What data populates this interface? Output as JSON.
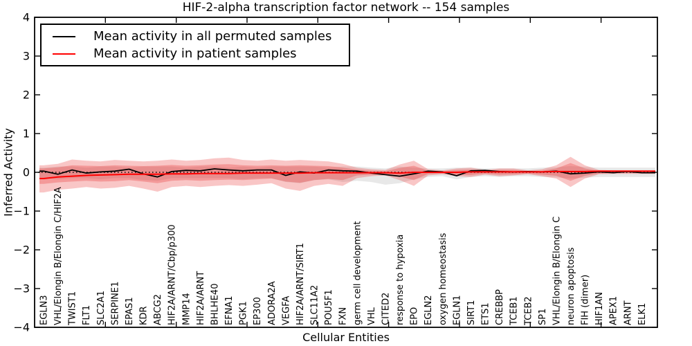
{
  "colors": {
    "black_line": "#000000",
    "red_line": "#ff0000",
    "grey_band": "rgba(128,128,128,0.18)",
    "red_band_outer": "rgba(232,50,50,0.28)",
    "red_band_inner": "rgba(232,50,50,0.30)",
    "zero_line": "#000000",
    "axis": "#000000"
  },
  "legend": {
    "items": [
      {
        "label": "Mean activity in all permuted samples",
        "color": "#000000"
      },
      {
        "label": "Mean activity in patient samples",
        "color": "#ff0000"
      }
    ]
  },
  "chart_data": {
    "type": "line",
    "title": "HIF-2-alpha transcription factor network -- 154 samples",
    "xlabel": "Cellular Entities",
    "ylabel": "Inferred Activity",
    "ylim": [
      -4,
      4
    ],
    "ytick_values": [
      4,
      3,
      2,
      1,
      0,
      -1,
      -2,
      -3,
      -4
    ],
    "ytick_labels": [
      "4",
      "3",
      "2",
      "1",
      "0",
      "−1",
      "−2",
      "−3",
      "−4"
    ],
    "grid": false,
    "zero_line_dotted": true,
    "legend_position": "upper left",
    "categories": [
      "EGLN3",
      "VHL/Elongin B/Elongin C/HIF2A",
      "TWIST1",
      "FLT1",
      "SLC2A1",
      "SERPINE1",
      "EPAS1",
      "KDR",
      "ABCG2",
      "HIF2A/ARNT/Cbp/p300",
      "MMP14",
      "HIF2A/ARNT",
      "BHLHE40",
      "EFNA1",
      "PGK1",
      "EP300",
      "ADORA2A",
      "VEGFA",
      "HIF2A/ARNT/SIRT1",
      "SLC11A2",
      "POU5F1",
      "FXN",
      "germ cell development",
      "VHL",
      "CITED2",
      "response to hypoxia",
      "EPO",
      "EGLN2",
      "oxygen homeostasis",
      "EGLN1",
      "SIRT1",
      "ETS1",
      "CREBBP",
      "TCEB1",
      "TCEB2",
      "SP1",
      "VHL/Elongin B/Elongin C",
      "neuron apoptosis",
      "FIH (dimer)",
      "HIF1AN",
      "APEX1",
      "ARNT",
      "ELK1"
    ],
    "series": [
      {
        "name": "Mean activity in all permuted samples",
        "color": "#000000",
        "values": [
          0.03,
          -0.05,
          0.06,
          -0.02,
          0.01,
          0.03,
          0.08,
          -0.04,
          -0.12,
          0.02,
          0.05,
          0.04,
          0.09,
          0.06,
          0.04,
          0.06,
          0.06,
          -0.08,
          0.01,
          -0.02,
          0.06,
          0.04,
          0.03,
          -0.02,
          -0.06,
          -0.1,
          -0.04,
          0.03,
          0.01,
          -0.09,
          0.04,
          0.05,
          0.02,
          0.01,
          0.02,
          0.01,
          0.03,
          -0.04,
          -0.02,
          0.01,
          -0.01,
          0.02,
          -0.01
        ]
      },
      {
        "name": "Mean activity in patient samples",
        "color": "#ff0000",
        "values": [
          -0.16,
          -0.12,
          -0.1,
          -0.08,
          -0.07,
          -0.06,
          -0.05,
          -0.05,
          -0.05,
          -0.04,
          -0.04,
          -0.03,
          -0.03,
          -0.03,
          -0.02,
          -0.02,
          -0.02,
          -0.02,
          -0.02,
          -0.01,
          -0.01,
          -0.01,
          -0.01,
          -0.01,
          -0.01,
          -0.02,
          0.0,
          0.0,
          0.0,
          0.0,
          0.01,
          0.01,
          0.01,
          0.01,
          0.01,
          0.01,
          0.02,
          0.02,
          0.02,
          0.03,
          0.03,
          0.03,
          0.03
        ]
      }
    ],
    "bands": [
      {
        "name": "permuted-samples-envelope",
        "color_key": "grey_band",
        "top": [
          0.12,
          0.15,
          0.15,
          0.12,
          0.15,
          0.15,
          0.12,
          0.15,
          0.15,
          0.15,
          0.12,
          0.15,
          0.15,
          0.12,
          0.15,
          0.12,
          0.15,
          0.15,
          0.15,
          0.15,
          0.12,
          0.15,
          0.15,
          0.12,
          0.1,
          0.15,
          0.12,
          0.1,
          0.1,
          0.12,
          0.12,
          0.1,
          0.1,
          0.1,
          0.1,
          0.12,
          0.13,
          0.16,
          0.14,
          0.12,
          0.12,
          0.12,
          0.12
        ],
        "bottom": [
          -0.15,
          -0.18,
          -0.15,
          -0.15,
          -0.18,
          -0.15,
          -0.15,
          -0.2,
          -0.22,
          -0.15,
          -0.15,
          -0.15,
          -0.15,
          -0.15,
          -0.18,
          -0.15,
          -0.15,
          -0.25,
          -0.28,
          -0.2,
          -0.18,
          -0.25,
          -0.22,
          -0.25,
          -0.32,
          -0.28,
          -0.18,
          -0.12,
          -0.1,
          -0.18,
          -0.12,
          -0.1,
          -0.12,
          -0.1,
          -0.1,
          -0.12,
          -0.13,
          -0.16,
          -0.14,
          -0.12,
          -0.12,
          -0.12,
          -0.12
        ]
      },
      {
        "name": "patient-samples-envelope-outer",
        "color_key": "red_band_outer",
        "top": [
          0.18,
          0.22,
          0.33,
          0.3,
          0.28,
          0.32,
          0.3,
          0.28,
          0.3,
          0.33,
          0.3,
          0.32,
          0.36,
          0.38,
          0.32,
          0.3,
          0.33,
          0.3,
          0.32,
          0.3,
          0.28,
          0.22,
          0.12,
          0.08,
          0.06,
          0.2,
          0.3,
          0.08,
          0.05,
          0.1,
          0.12,
          0.06,
          0.1,
          0.1,
          0.05,
          0.08,
          0.18,
          0.4,
          0.18,
          0.06,
          0.05,
          0.05,
          0.04
        ],
        "bottom": [
          -0.52,
          -0.45,
          -0.42,
          -0.38,
          -0.42,
          -0.4,
          -0.35,
          -0.42,
          -0.5,
          -0.38,
          -0.35,
          -0.38,
          -0.35,
          -0.33,
          -0.35,
          -0.32,
          -0.28,
          -0.42,
          -0.48,
          -0.35,
          -0.3,
          -0.35,
          -0.15,
          -0.1,
          -0.08,
          -0.2,
          -0.35,
          -0.08,
          -0.05,
          -0.1,
          -0.12,
          -0.06,
          -0.1,
          -0.08,
          -0.05,
          -0.1,
          -0.16,
          -0.38,
          -0.16,
          -0.05,
          -0.04,
          -0.04,
          -0.04
        ]
      },
      {
        "name": "patient-samples-envelope-inner",
        "color_key": "red_band_inner",
        "top": [
          0.1,
          0.13,
          0.18,
          0.17,
          0.16,
          0.18,
          0.17,
          0.16,
          0.17,
          0.19,
          0.17,
          0.18,
          0.2,
          0.21,
          0.18,
          0.17,
          0.18,
          0.17,
          0.18,
          0.17,
          0.16,
          0.12,
          0.07,
          0.04,
          0.03,
          0.11,
          0.17,
          0.04,
          0.03,
          0.06,
          0.07,
          0.03,
          0.06,
          0.06,
          0.03,
          0.04,
          0.1,
          0.24,
          0.1,
          0.03,
          0.03,
          0.03,
          0.02
        ],
        "bottom": [
          -0.3,
          -0.26,
          -0.24,
          -0.22,
          -0.24,
          -0.23,
          -0.2,
          -0.24,
          -0.28,
          -0.22,
          -0.2,
          -0.22,
          -0.2,
          -0.19,
          -0.2,
          -0.18,
          -0.16,
          -0.24,
          -0.27,
          -0.2,
          -0.17,
          -0.2,
          -0.08,
          -0.06,
          -0.04,
          -0.11,
          -0.2,
          -0.04,
          -0.03,
          -0.06,
          -0.07,
          -0.03,
          -0.06,
          -0.05,
          -0.03,
          -0.06,
          -0.09,
          -0.22,
          -0.09,
          -0.03,
          -0.02,
          -0.02,
          -0.02
        ]
      }
    ]
  }
}
